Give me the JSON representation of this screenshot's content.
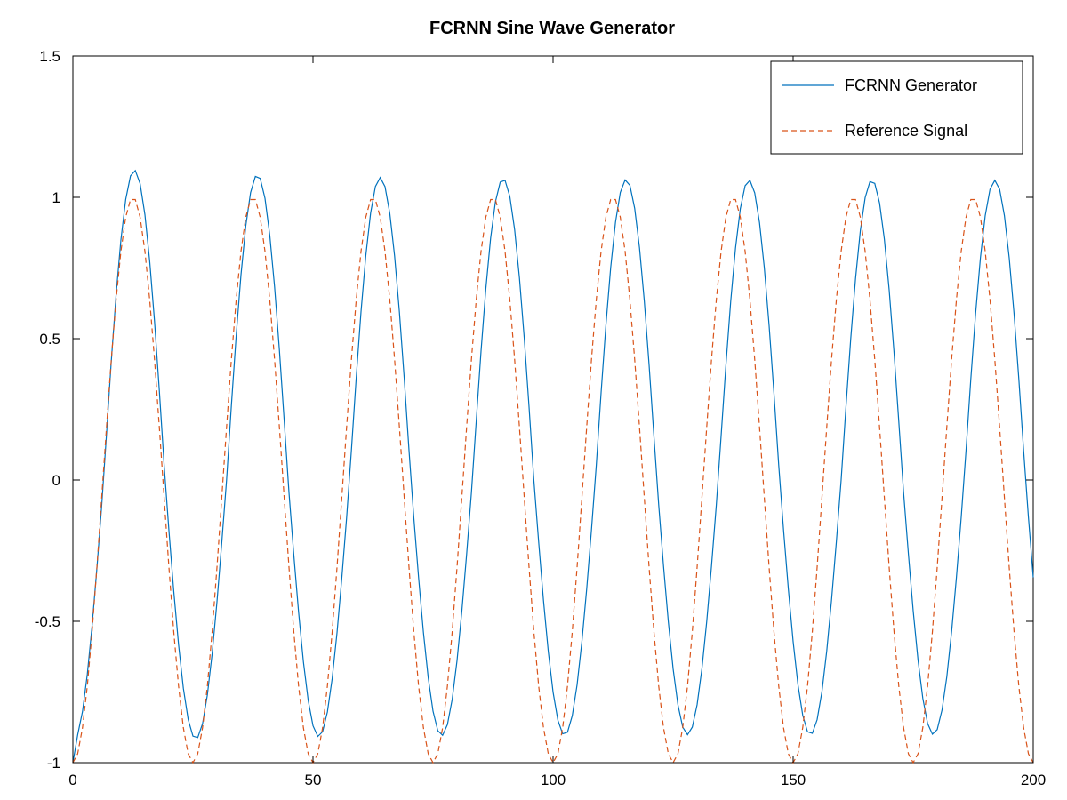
{
  "chart_data": {
    "type": "line",
    "title": "FCRNN Sine Wave Generator",
    "xlabel": "",
    "ylabel": "",
    "xlim": [
      0,
      200
    ],
    "ylim": [
      -1,
      1.5
    ],
    "x_ticks": [
      0,
      50,
      100,
      150,
      200
    ],
    "y_ticks": [
      -1,
      -0.5,
      0,
      0.5,
      1,
      1.5
    ],
    "x_tick_labels": [
      "0",
      "50",
      "100",
      "150",
      "200"
    ],
    "y_tick_labels": [
      "-1",
      "-0.5",
      "0",
      "0.5",
      "1",
      "1.5"
    ],
    "grid": false,
    "legend_position": "top-right",
    "series": [
      {
        "name": "FCRNN Generator",
        "color": "#0072bd",
        "style": "solid",
        "sample_step": 1,
        "period": 25.6,
        "amplitude_start": 1.11,
        "amplitude_end": 1.06,
        "phase_shift": 0.6,
        "x_range": [
          0,
          200
        ],
        "points": [
          [
            0,
            -1.0
          ],
          [
            13.4,
            1.11
          ],
          [
            26.1,
            -0.93
          ],
          [
            39.2,
            1.08
          ],
          [
            51.8,
            -0.9
          ],
          [
            65.0,
            1.07
          ],
          [
            77.5,
            -0.9
          ],
          [
            90.5,
            1.07
          ],
          [
            103.3,
            -0.9
          ],
          [
            116.1,
            1.06
          ],
          [
            128.9,
            -0.9
          ],
          [
            141.7,
            1.06
          ],
          [
            154.5,
            -0.9
          ],
          [
            167.3,
            1.06
          ],
          [
            180.1,
            -0.9
          ],
          [
            192.9,
            1.06
          ],
          [
            200,
            -0.11
          ]
        ]
      },
      {
        "name": "Reference Signal",
        "color": "#d95319",
        "style": "dashed",
        "sample_step": 1,
        "period": 25,
        "amplitude": 1.0,
        "x_range": [
          0,
          200
        ],
        "points": [
          [
            0,
            -1.0
          ],
          [
            12.5,
            1.0
          ],
          [
            25,
            -1.0
          ],
          [
            37.5,
            1.0
          ],
          [
            50,
            -1.0
          ],
          [
            62.5,
            1.0
          ],
          [
            75,
            -1.0
          ],
          [
            87.5,
            1.0
          ],
          [
            100,
            -1.0
          ],
          [
            112.5,
            1.0
          ],
          [
            125,
            -1.0
          ],
          [
            137.5,
            1.0
          ],
          [
            150,
            -1.0
          ],
          [
            162.5,
            1.0
          ],
          [
            175,
            -1.0
          ],
          [
            187.5,
            1.0
          ],
          [
            200,
            -1.0
          ]
        ]
      }
    ]
  },
  "colors": {
    "axis": "#000000",
    "background": "#ffffff",
    "series1": "#0072bd",
    "series2": "#d95319"
  }
}
